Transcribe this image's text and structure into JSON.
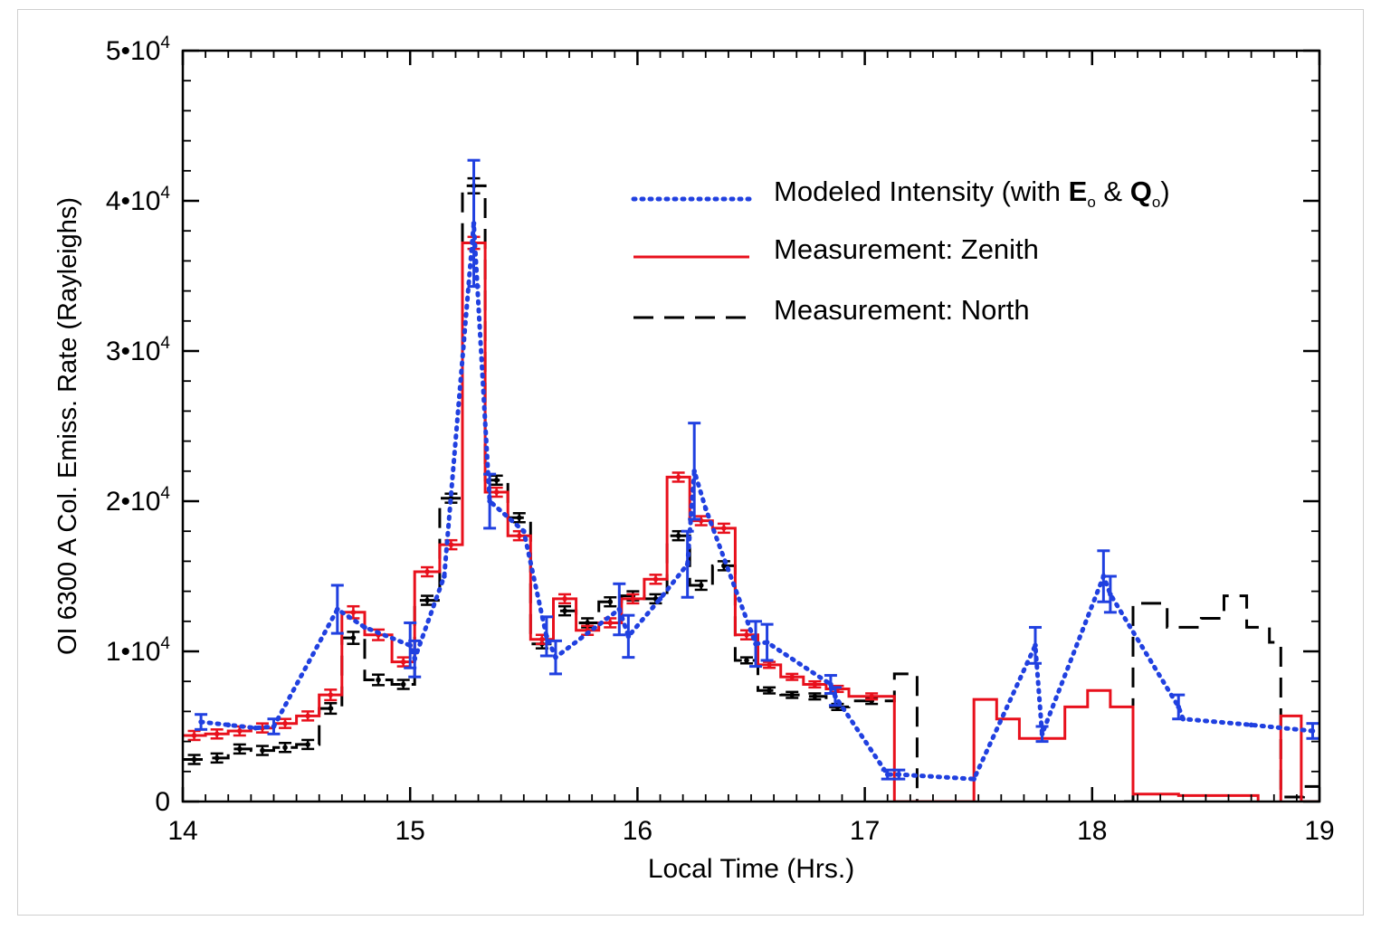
{
  "chart_data": {
    "type": "line",
    "xlabel": "Local Time (Hrs.)",
    "ylabel": "OI 6300 A Col. Emiss. Rate (Rayleighs)",
    "xlim": [
      14,
      19
    ],
    "ylim": [
      0,
      50000
    ],
    "x_ticks": [
      {
        "value": 14,
        "label": "14"
      },
      {
        "value": 15,
        "label": "15"
      },
      {
        "value": 16,
        "label": "16"
      },
      {
        "value": 17,
        "label": "17"
      },
      {
        "value": 18,
        "label": "18"
      },
      {
        "value": 19,
        "label": "19"
      }
    ],
    "y_ticks": [
      {
        "value": 0,
        "label": "0",
        "mant": "",
        "exp": ""
      },
      {
        "value": 10000,
        "label": "1•10^4",
        "mant": "1•10",
        "exp": "4"
      },
      {
        "value": 20000,
        "label": "2•10^4",
        "mant": "2•10",
        "exp": "4"
      },
      {
        "value": 30000,
        "label": "3•10^4",
        "mant": "3•10",
        "exp": "4"
      },
      {
        "value": 40000,
        "label": "4•10^4",
        "mant": "4•10",
        "exp": "4"
      },
      {
        "value": 50000,
        "label": "5•10^4",
        "mant": "5•10",
        "exp": "4"
      }
    ],
    "legend_position": "top-right",
    "legend": [
      {
        "key": "modeled",
        "text_main": "Modeled Intensity (with ",
        "e": "E",
        "sub_o": "o",
        "amp": " & ",
        "q": "Q",
        "close": ")",
        "style": "dotted",
        "color": "#2040e0"
      },
      {
        "key": "zenith",
        "text": "Measurement: Zenith",
        "style": "solid",
        "color": "#e8101c"
      },
      {
        "key": "north",
        "text": "Measurement: North",
        "style": "dashed",
        "color": "#000000"
      }
    ],
    "series": [
      {
        "key": "modeled",
        "color": "#2040e0",
        "style": "dotted",
        "points": [
          [
            14.08,
            5300,
            500
          ],
          [
            14.2,
            5100,
            0
          ],
          [
            14.32,
            4900,
            0
          ],
          [
            14.4,
            5000,
            500
          ],
          [
            14.68,
            12800,
            1600
          ],
          [
            14.8,
            11600,
            0
          ],
          [
            15.0,
            10400,
            1500
          ],
          [
            15.02,
            9500,
            1200
          ],
          [
            15.15,
            15000,
            0
          ],
          [
            15.28,
            38500,
            4200
          ],
          [
            15.35,
            20000,
            1800
          ],
          [
            15.5,
            18000,
            0
          ],
          [
            15.6,
            11000,
            1300
          ],
          [
            15.64,
            9600,
            1100
          ],
          [
            15.92,
            12800,
            1700
          ],
          [
            15.96,
            11000,
            1400
          ],
          [
            16.1,
            13500,
            0
          ],
          [
            16.22,
            15800,
            2200
          ],
          [
            16.25,
            22000,
            3200
          ],
          [
            16.3,
            19500,
            0
          ],
          [
            16.52,
            10500,
            1500
          ],
          [
            16.57,
            10600,
            1200
          ],
          [
            16.85,
            7800,
            600
          ],
          [
            16.87,
            7000,
            600
          ],
          [
            17.1,
            1800,
            300
          ],
          [
            17.15,
            1800,
            300
          ],
          [
            17.48,
            1500,
            0
          ],
          [
            17.75,
            10400,
            1200
          ],
          [
            17.78,
            4500,
            500
          ],
          [
            18.05,
            15000,
            1700
          ],
          [
            18.08,
            13800,
            1200
          ],
          [
            18.38,
            6300,
            800
          ],
          [
            18.4,
            5500,
            0
          ],
          [
            18.7,
            5100,
            0
          ],
          [
            18.97,
            4700,
            500
          ]
        ]
      },
      {
        "key": "zenith",
        "color": "#e8101c",
        "style": "solid",
        "steps": [
          [
            14.0,
            14.1,
            4400,
            300
          ],
          [
            14.1,
            14.2,
            4500,
            300
          ],
          [
            14.2,
            14.3,
            4700,
            300
          ],
          [
            14.3,
            14.4,
            4900,
            300
          ],
          [
            14.4,
            14.5,
            5200,
            300
          ],
          [
            14.5,
            14.6,
            5700,
            300
          ],
          [
            14.6,
            14.7,
            7100,
            350
          ],
          [
            14.7,
            14.8,
            12600,
            400
          ],
          [
            14.8,
            14.92,
            11100,
            350
          ],
          [
            14.92,
            15.02,
            9300,
            300
          ],
          [
            15.02,
            15.13,
            15300,
            300
          ],
          [
            15.13,
            15.23,
            17100,
            300
          ],
          [
            15.23,
            15.33,
            37200,
            400
          ],
          [
            15.33,
            15.43,
            20600,
            300
          ],
          [
            15.43,
            15.53,
            17700,
            300
          ],
          [
            15.53,
            15.63,
            10800,
            300
          ],
          [
            15.63,
            15.73,
            13500,
            300
          ],
          [
            15.73,
            15.83,
            11400,
            300
          ],
          [
            15.83,
            15.93,
            11900,
            300
          ],
          [
            15.93,
            16.03,
            13500,
            300
          ],
          [
            16.03,
            16.13,
            14800,
            300
          ],
          [
            16.13,
            16.23,
            21600,
            300
          ],
          [
            16.23,
            16.33,
            18700,
            300
          ],
          [
            16.33,
            16.43,
            18200,
            300
          ],
          [
            16.43,
            16.53,
            11100,
            300
          ],
          [
            16.53,
            16.63,
            9100,
            200
          ],
          [
            16.63,
            16.73,
            8300,
            200
          ],
          [
            16.73,
            16.83,
            7800,
            200
          ],
          [
            16.83,
            16.93,
            7500,
            200
          ],
          [
            16.93,
            17.13,
            7000,
            200
          ],
          [
            17.13,
            17.38,
            0,
            0
          ],
          [
            17.38,
            17.48,
            0,
            0
          ],
          [
            17.48,
            17.58,
            6800,
            0
          ],
          [
            17.58,
            17.68,
            5500,
            0
          ],
          [
            17.68,
            17.88,
            4200,
            0
          ],
          [
            17.88,
            17.98,
            6300,
            0
          ],
          [
            17.98,
            18.08,
            7400,
            0
          ],
          [
            18.08,
            18.18,
            6300,
            0
          ],
          [
            18.18,
            18.38,
            500,
            0
          ],
          [
            18.38,
            18.73,
            400,
            0
          ],
          [
            18.73,
            18.83,
            -200,
            0
          ],
          [
            18.83,
            18.92,
            5700,
            0
          ],
          [
            18.92,
            19.0,
            0,
            0
          ]
        ]
      },
      {
        "key": "north",
        "color": "#000000",
        "style": "dashed",
        "steps": [
          [
            14.0,
            14.1,
            2800,
            300
          ],
          [
            14.1,
            14.2,
            2900,
            300
          ],
          [
            14.2,
            14.3,
            3500,
            300
          ],
          [
            14.3,
            14.4,
            3400,
            300
          ],
          [
            14.4,
            14.5,
            3600,
            300
          ],
          [
            14.5,
            14.6,
            3800,
            300
          ],
          [
            14.6,
            14.7,
            6200,
            350
          ],
          [
            14.7,
            14.8,
            10900,
            400
          ],
          [
            14.8,
            14.92,
            8100,
            350
          ],
          [
            14.92,
            15.02,
            7800,
            300
          ],
          [
            15.02,
            15.13,
            13400,
            300
          ],
          [
            15.13,
            15.23,
            20200,
            300
          ],
          [
            15.23,
            15.33,
            41000,
            500
          ],
          [
            15.33,
            15.43,
            21400,
            300
          ],
          [
            15.43,
            15.53,
            18900,
            300
          ],
          [
            15.53,
            15.63,
            10500,
            300
          ],
          [
            15.63,
            15.73,
            12700,
            300
          ],
          [
            15.73,
            15.83,
            11900,
            300
          ],
          [
            15.83,
            15.93,
            13300,
            300
          ],
          [
            15.93,
            16.03,
            13700,
            300
          ],
          [
            16.03,
            16.13,
            13500,
            300
          ],
          [
            16.13,
            16.23,
            17700,
            300
          ],
          [
            16.23,
            16.33,
            14400,
            300
          ],
          [
            16.33,
            16.43,
            15700,
            300
          ],
          [
            16.43,
            16.53,
            9400,
            200
          ],
          [
            16.53,
            16.63,
            7400,
            200
          ],
          [
            16.63,
            16.73,
            7100,
            200
          ],
          [
            16.73,
            16.83,
            7000,
            200
          ],
          [
            16.83,
            16.93,
            6300,
            200
          ],
          [
            16.93,
            17.13,
            6700,
            200
          ],
          [
            17.13,
            17.23,
            8500,
            0
          ],
          [
            17.23,
            17.43,
            0,
            0
          ],
          [
            17.43,
            17.98,
            -200,
            0
          ],
          [
            17.98,
            18.18,
            0,
            0
          ],
          [
            18.18,
            18.33,
            13200,
            0
          ],
          [
            18.33,
            18.48,
            11600,
            0
          ],
          [
            18.48,
            18.58,
            12200,
            0
          ],
          [
            18.58,
            18.68,
            13700,
            0
          ],
          [
            18.68,
            18.78,
            11600,
            0
          ],
          [
            18.78,
            18.83,
            10600,
            0
          ],
          [
            18.83,
            18.93,
            300,
            0
          ],
          [
            18.93,
            19.0,
            1000,
            0
          ]
        ]
      }
    ]
  }
}
